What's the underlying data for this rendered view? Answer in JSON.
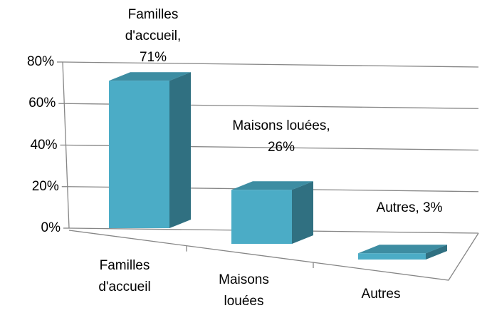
{
  "chart_data": {
    "type": "bar3d",
    "categories": [
      "Familles d'accueil",
      "Maisons louées",
      "Autres"
    ],
    "values": [
      71,
      26,
      3
    ],
    "value_labels": [
      "Familles d'accueil, 71%",
      "Maisons louées, 26%",
      "Autres, 3%"
    ],
    "color": "#4bacc6",
    "ylim": [
      0,
      80
    ],
    "yticks": [
      {
        "value": 0,
        "label": "0%"
      },
      {
        "value": 20,
        "label": "20%"
      },
      {
        "value": 40,
        "label": "40%"
      },
      {
        "value": 60,
        "label": "60%"
      },
      {
        "value": 80,
        "label": "80%"
      }
    ],
    "grid": true
  }
}
